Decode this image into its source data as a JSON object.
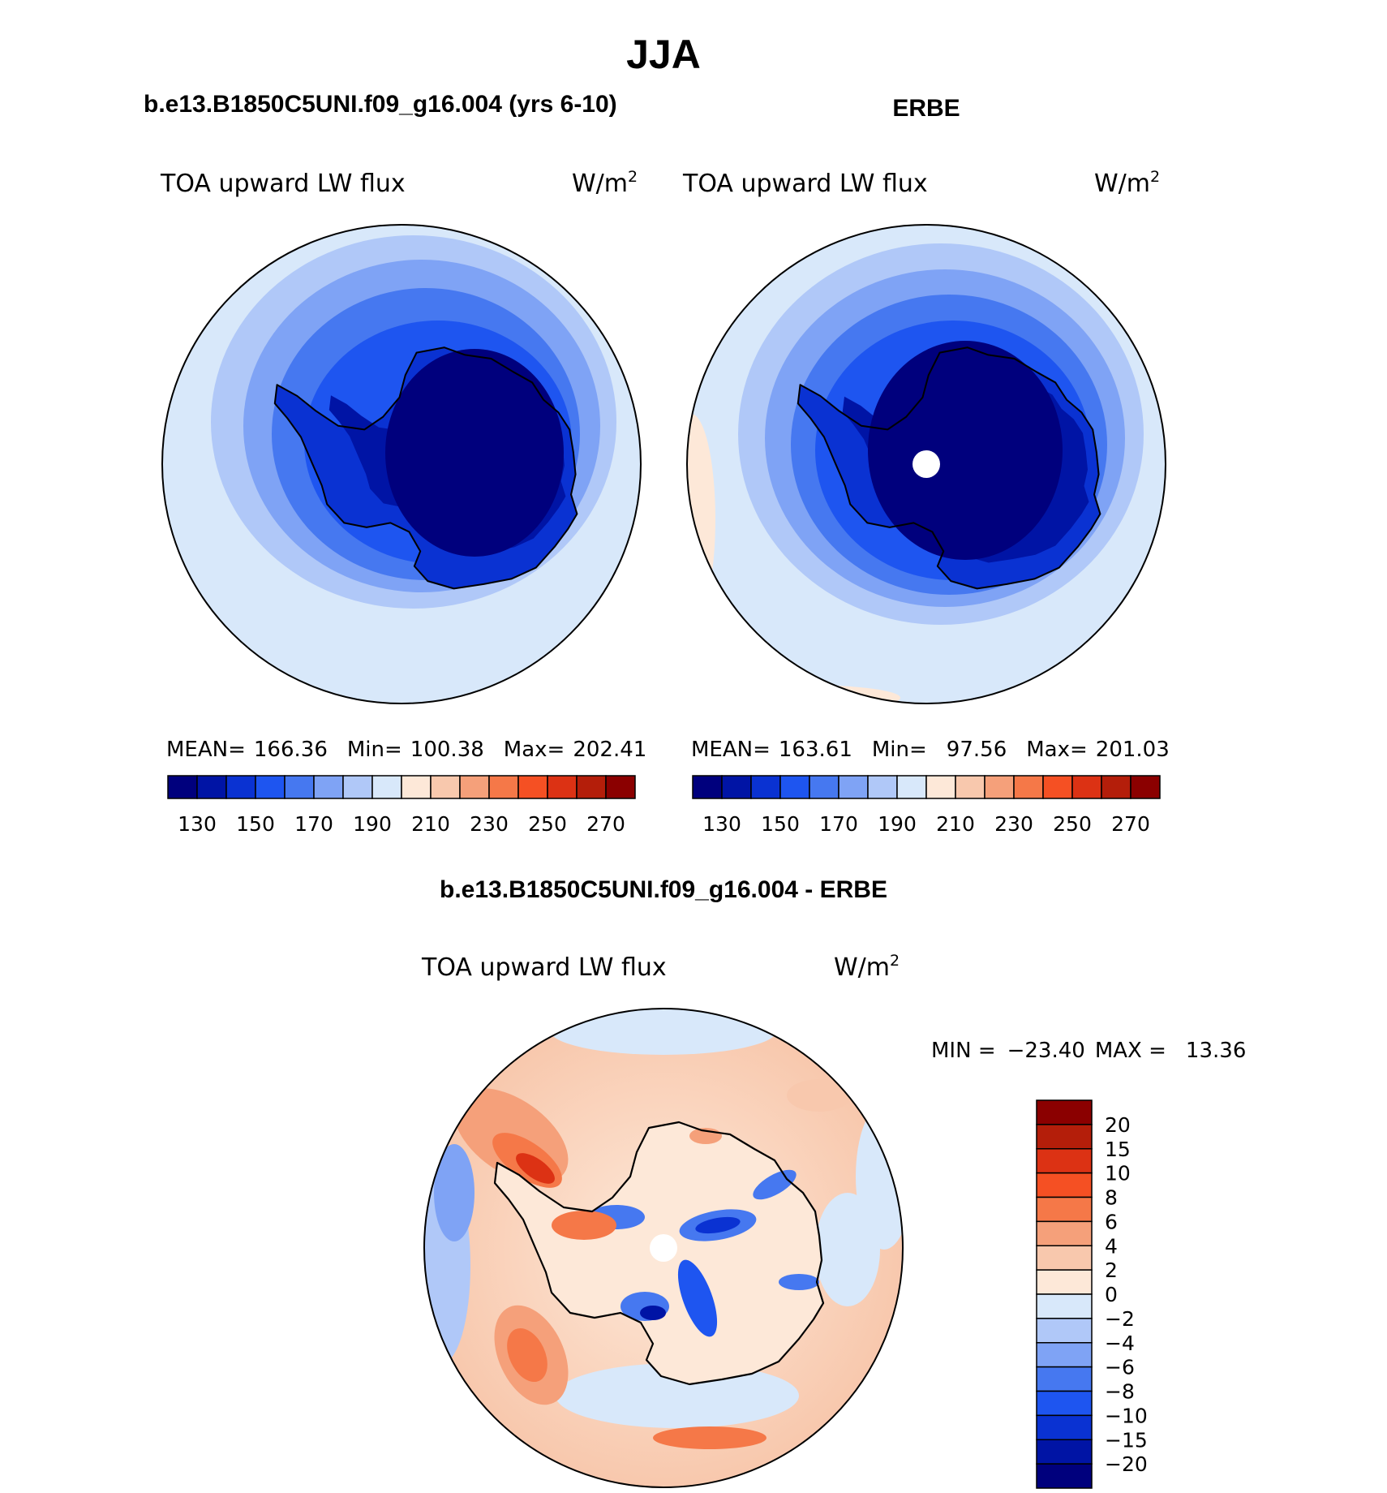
{
  "page_title": "JJA",
  "panels": [
    {
      "id": "model",
      "title": "b.e13.B1850C5UNI.f09_g16.004 (yrs 6-10)",
      "left_label": "TOA upward LW flux",
      "units": "W/m",
      "units_sup": "2",
      "stats": {
        "mean_label": "MEAN=",
        "mean": "166.36",
        "min_label": "Min=",
        "min": "100.38",
        "max_label": "Max=",
        "max": "202.41"
      }
    },
    {
      "id": "obs",
      "title": "ERBE",
      "left_label": "TOA upward LW flux",
      "units": "W/m",
      "units_sup": "2",
      "stats": {
        "mean_label": "MEAN=",
        "mean": "163.61",
        "min_label": "Min=",
        "min": "97.56",
        "max_label": "Max=",
        "max": "201.03"
      }
    },
    {
      "id": "diff",
      "title": "b.e13.B1850C5UNI.f09_g16.004 - ERBE",
      "left_label": "TOA upward LW flux",
      "units": "W/m",
      "units_sup": "2",
      "stats": {
        "min_label": "MIN =",
        "min": "−23.40",
        "max_label": "MAX =",
        "max": "13.36"
      }
    }
  ],
  "colorbars": {
    "absolute": {
      "colors": [
        "#00007d",
        "#0014a5",
        "#0a32d2",
        "#1e55f0",
        "#4678f0",
        "#7fa3f5",
        "#b0c8f8",
        "#d8e8fa",
        "#fde8d8",
        "#f8c8ad",
        "#f5a07a",
        "#f57848",
        "#f55023",
        "#dc3214",
        "#b41e0a",
        "#8b0000"
      ],
      "tick_labels": [
        "130",
        "150",
        "170",
        "190",
        "210",
        "230",
        "250",
        "270"
      ]
    },
    "difference": {
      "colors": [
        "#00007d",
        "#0014a5",
        "#0a32d2",
        "#1e55f0",
        "#4678f0",
        "#7fa3f5",
        "#b0c8f8",
        "#d8e8fa",
        "#fde8d8",
        "#f8c8ad",
        "#f5a07a",
        "#f57848",
        "#f55023",
        "#dc3214",
        "#b41e0a",
        "#8b0000"
      ],
      "tick_labels": [
        "20",
        "15",
        "10",
        "8",
        "6",
        "4",
        "2",
        "0",
        "−2",
        "−4",
        "−6",
        "−8",
        "−10",
        "−15",
        "−20"
      ]
    }
  },
  "chart_data": [
    {
      "type": "heatmap",
      "title": "b.e13.B1850C5UNI.f09_g16.004 (yrs 6-10)",
      "variable": "TOA upward LW flux",
      "units": "W/m2",
      "projection": "south polar stereographic",
      "season": "JJA",
      "contour_levels": [
        120,
        130,
        140,
        150,
        160,
        170,
        180,
        190,
        200,
        210,
        220,
        230,
        240,
        250,
        260,
        270,
        280
      ],
      "mean": 166.36,
      "min": 100.38,
      "max": 202.41
    },
    {
      "type": "heatmap",
      "title": "ERBE",
      "variable": "TOA upward LW flux",
      "units": "W/m2",
      "projection": "south polar stereographic",
      "season": "JJA",
      "contour_levels": [
        120,
        130,
        140,
        150,
        160,
        170,
        180,
        190,
        200,
        210,
        220,
        230,
        240,
        250,
        260,
        270,
        280
      ],
      "mean": 163.61,
      "min": 97.56,
      "max": 201.03
    },
    {
      "type": "heatmap",
      "title": "b.e13.B1850C5UNI.f09_g16.004 - ERBE",
      "variable": "TOA upward LW flux",
      "units": "W/m2",
      "projection": "south polar stereographic",
      "season": "JJA",
      "contour_levels": [
        -20,
        -15,
        -10,
        -8,
        -6,
        -4,
        -2,
        0,
        2,
        4,
        6,
        8,
        10,
        15,
        20
      ],
      "min": -23.4,
      "max": 13.36
    }
  ]
}
